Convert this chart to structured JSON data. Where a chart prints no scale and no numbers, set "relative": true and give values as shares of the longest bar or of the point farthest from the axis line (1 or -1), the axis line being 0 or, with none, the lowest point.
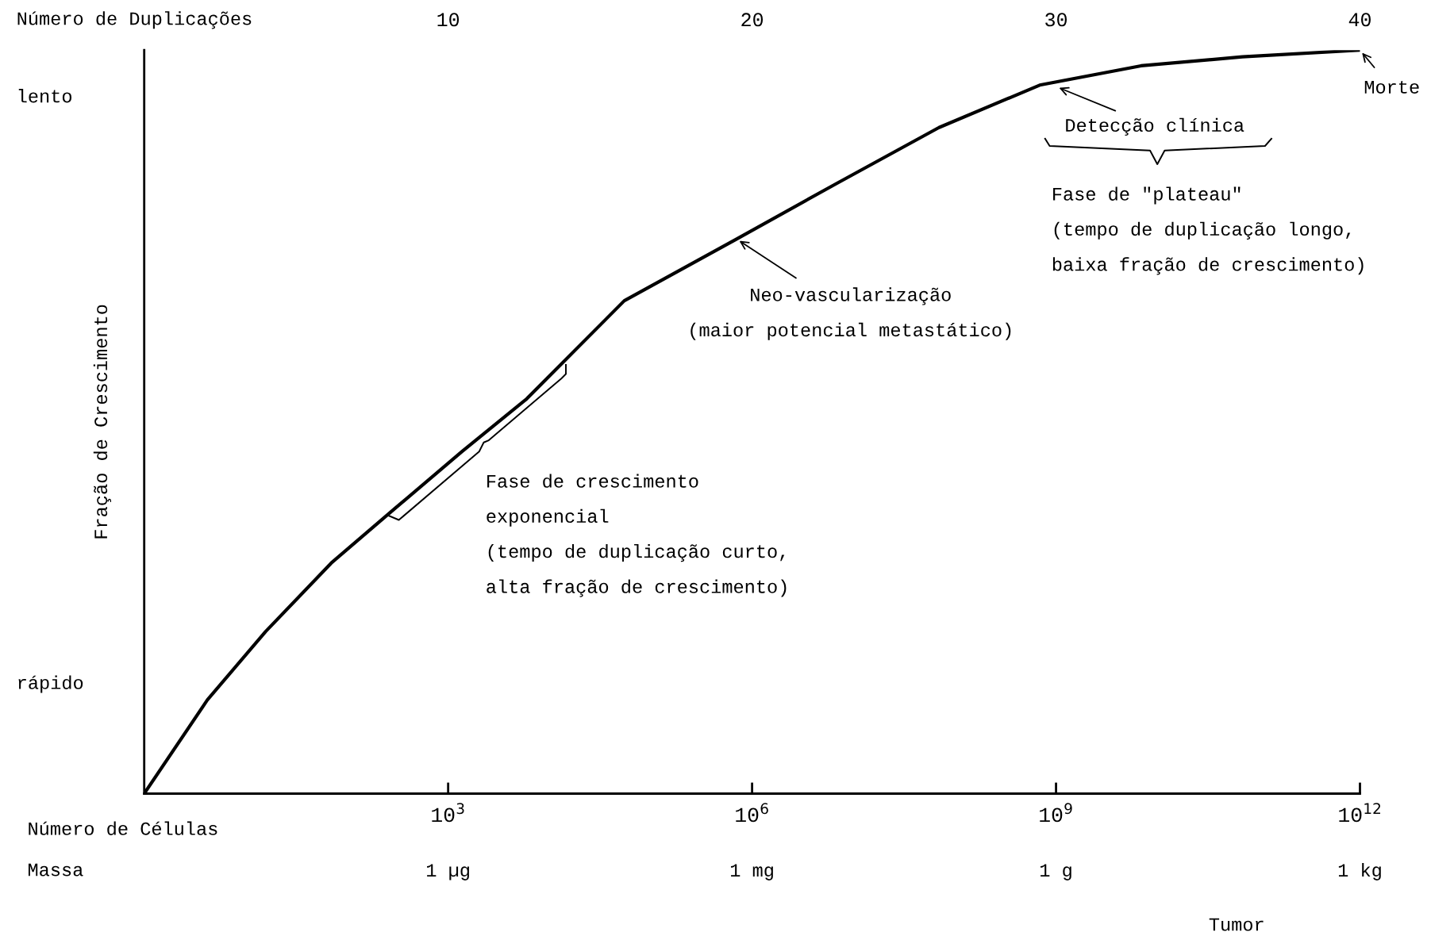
{
  "chart_data": {
    "type": "line",
    "relative": true,
    "log": "x",
    "xlim": [
      1,
      1000000000000
    ],
    "xticks": [
      {
        "value": 1000,
        "label": "10$^{3}$"
      },
      {
        "value": 1000000,
        "label": "10$^{6}$"
      },
      {
        "value": 1000000000,
        "label": "10$^{9}$"
      },
      {
        "value": 1000000000000,
        "label": "10$^{12}$"
      }
    ],
    "xlabel": "Número de Células",
    "x2lim": [
      0,
      40
    ],
    "x2ticks": [
      10,
      20,
      30,
      40
    ],
    "x2label": "Número de Duplicações",
    "ylabel": "Fração de Crescimento",
    "series": [
      {
        "color": "#000000",
        "x": [
          1,
          4.2,
          15.8,
          70,
          307,
          1365,
          5960,
          54800,
          703000,
          6900000,
          70000000,
          690000000,
          6900000000,
          69000000000,
          1000000000000
        ],
        "values": [
          0,
          0.126,
          0.218,
          0.31,
          0.385,
          0.46,
          0.531,
          0.663,
          0.746,
          0.821,
          0.896,
          0.953,
          0.979,
          0.991,
          1.0
        ]
      }
    ],
    "annotations": [
      "lento",
      "rápido",
      "Tumor",
      "Massa",
      "1 µg",
      "1 mg",
      "1 g",
      "1 kg",
      {
        "text": "Morte",
        "x": 1000000000000,
        "y": 1.0
      },
      {
        "text": "Detecção clínica",
        "x": 1000000000,
        "y": 0.951
      },
      {
        "text": "Neo-vascularização\n(maior potencial metastático)",
        "x": 703000,
        "y": 0.746
      },
      "Fase de \"plateau\"\n(tempo de duplicação longo,\nbaixa fração de crescimento)",
      "Fase de crescimento\nexponencial\n(tempo de duplicação curto,\nalta fração de crescimento)"
    ],
    "grid": false,
    "legend": false,
    "marker": "none",
    "line_style": "solid"
  }
}
